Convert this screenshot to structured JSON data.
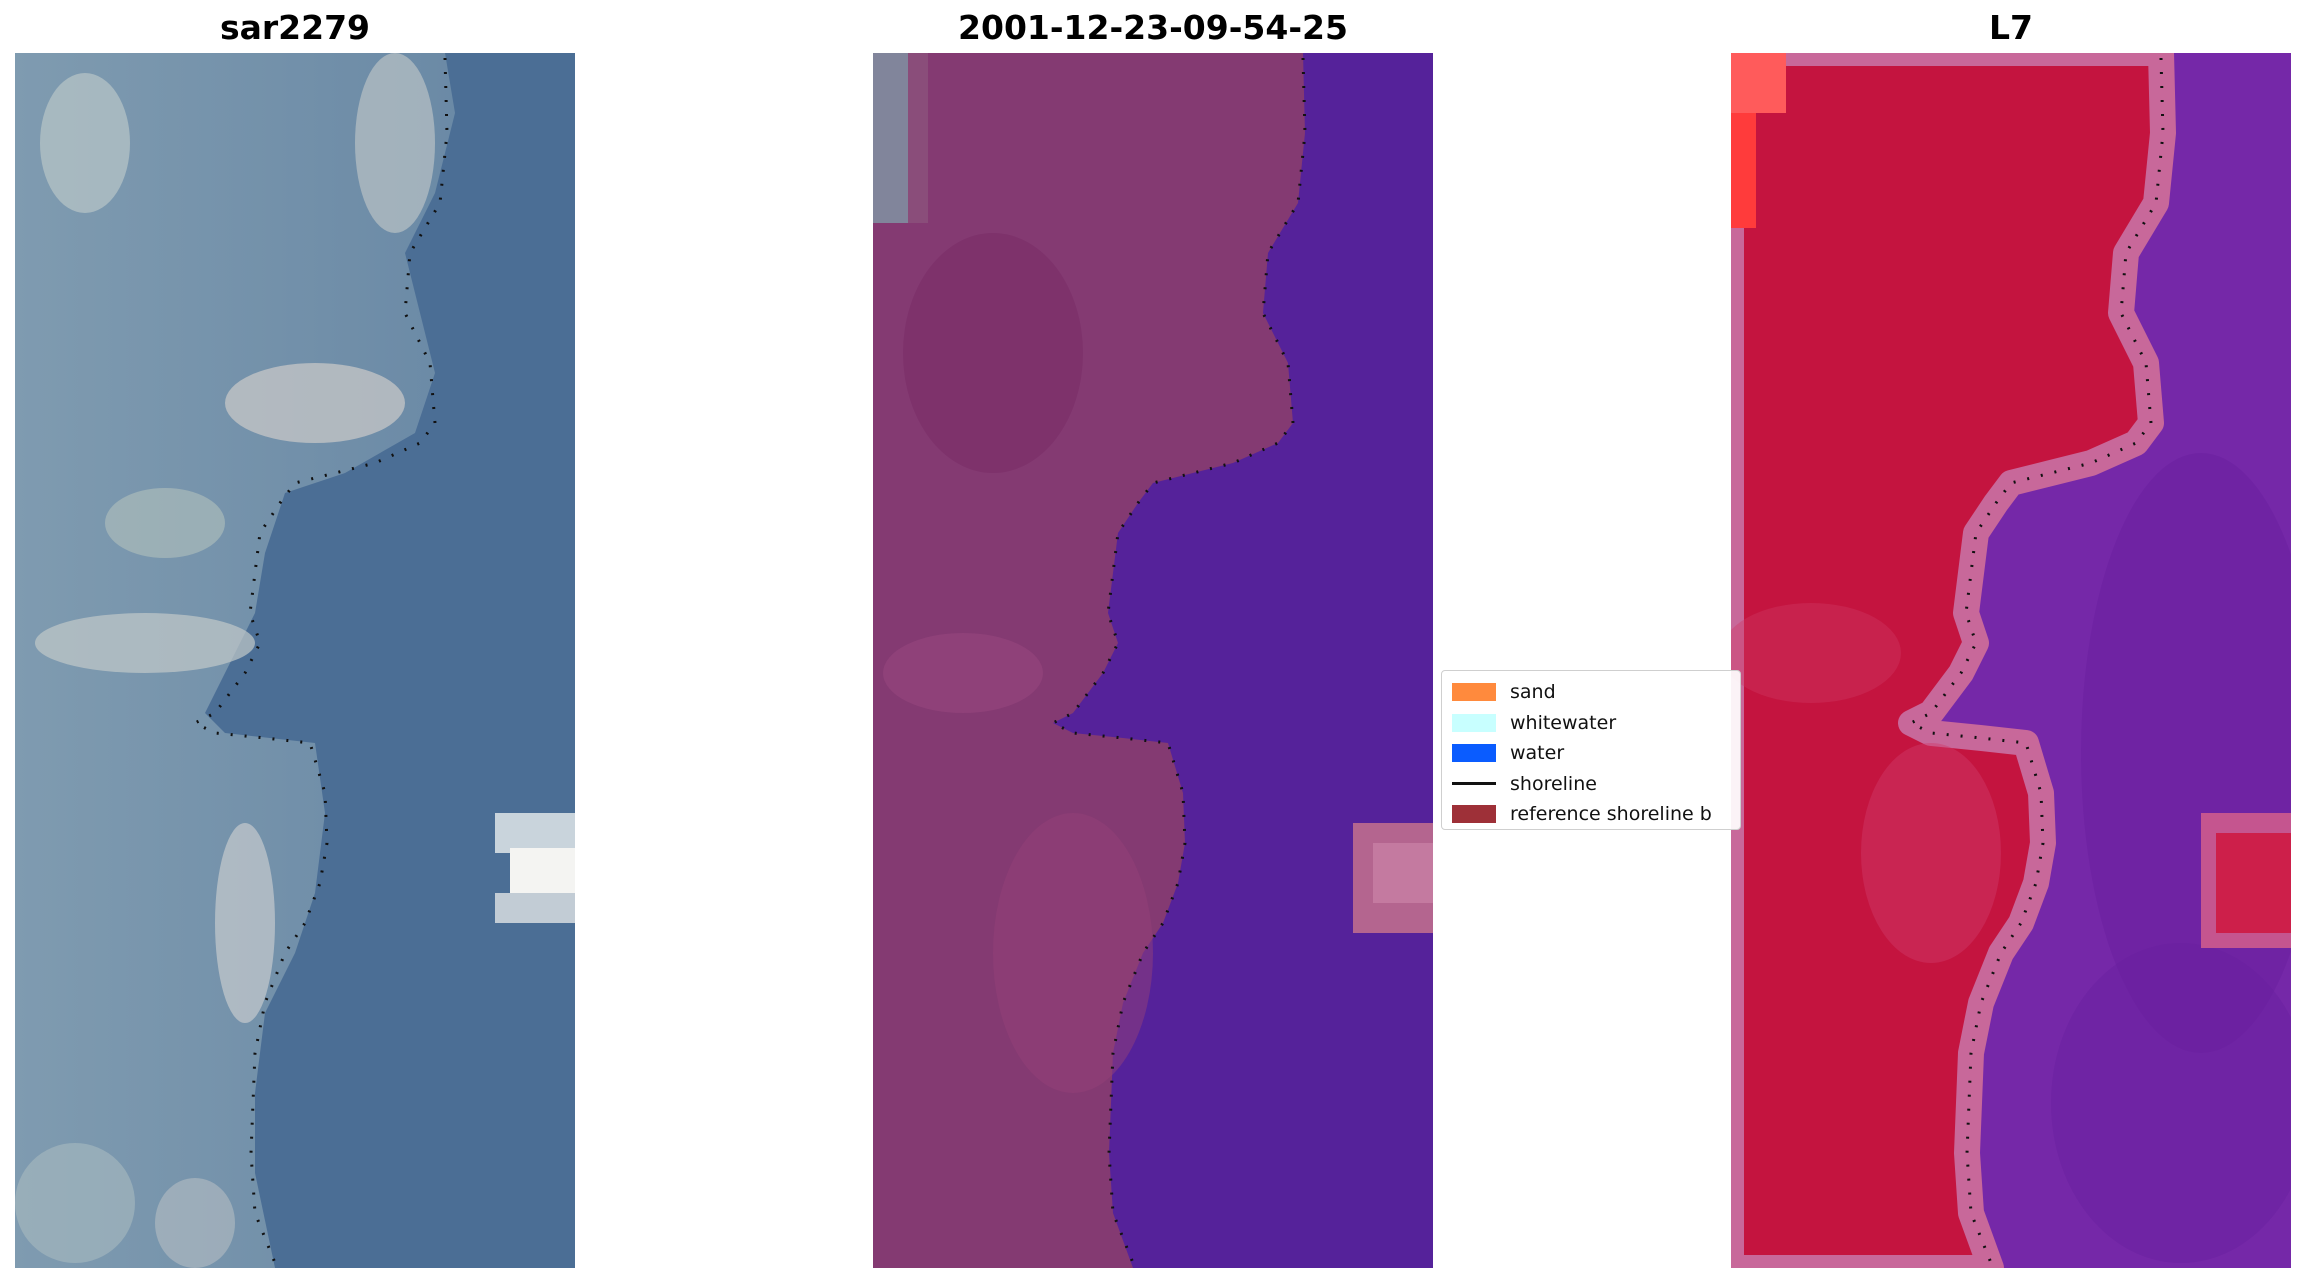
{
  "panels": [
    {
      "title": "sar2279"
    },
    {
      "title": "2001-12-23-09-54-25"
    },
    {
      "title": "L7"
    }
  ],
  "legend": {
    "items": [
      {
        "label": "sand",
        "color": "#ff8a3d"
      },
      {
        "label": "whitewater",
        "color": "#c8ffff"
      },
      {
        "label": "water",
        "color": "#0a5cff"
      },
      {
        "label": "shoreline",
        "color": "#111111"
      },
      {
        "label": "reference shoreline b",
        "color": "#9e3038"
      }
    ]
  },
  "colors": {
    "rgb_land": "#8aa3b8",
    "rgb_water": "#4a6f96",
    "classified_land": "#8a3a74",
    "classified_water": "#55229a",
    "mndwi_land": "#c8173f",
    "mndwi_water": "#7a2aa8"
  }
}
